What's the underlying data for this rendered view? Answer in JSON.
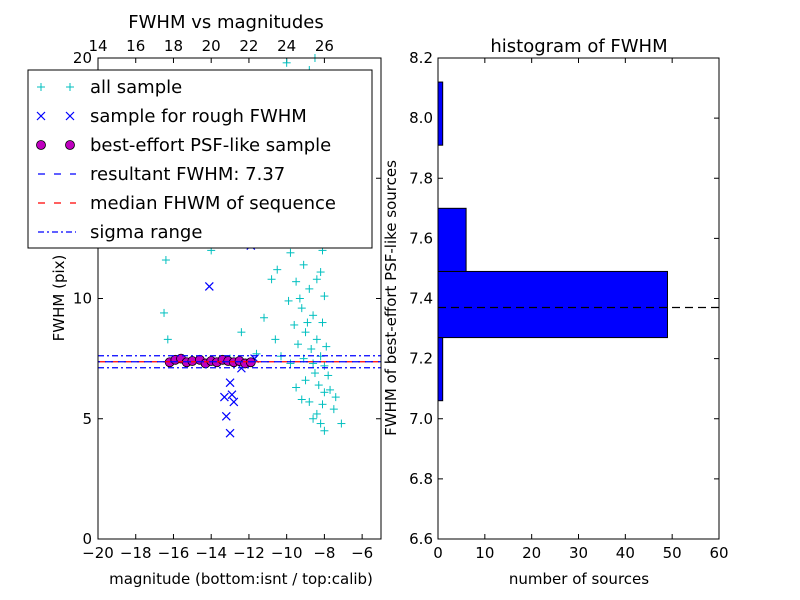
{
  "chart_data": [
    {
      "type": "scatter",
      "title": "FWHM vs magnitudes",
      "xlabel": "magnitude (bottom:isnt / top:calib)",
      "ylabel": "FWHM (pix)",
      "xlim": [
        -20,
        -5
      ],
      "ylim": [
        0,
        20
      ],
      "x_ticks": [
        "−20",
        "−18",
        "−16",
        "−14",
        "−12",
        "−10",
        "−8",
        "−6"
      ],
      "y_ticks": [
        "0",
        "5",
        "10",
        "15",
        "20"
      ],
      "top_x_ticks": [
        "14",
        "16",
        "18",
        "20",
        "22",
        "24",
        "26"
      ],
      "legend_position": "upper-left",
      "legend": [
        {
          "label": "all sample",
          "marker": "+",
          "color": "#00bfbf"
        },
        {
          "label": "sample for rough FWHM",
          "marker": "x",
          "color": "#0000ff"
        },
        {
          "label": "best-effort PSF-like sample",
          "marker": "o",
          "color": "#bf00bf"
        },
        {
          "label": "resultant FWHM: 7.37",
          "linestyle": "dashed",
          "color": "#0000ff"
        },
        {
          "label": "median FHWM of sequence",
          "linestyle": "dashed",
          "color": "#ff0000"
        },
        {
          "label": "sigma range",
          "linestyle": "dashdot",
          "color": "#0000ff"
        }
      ],
      "lines": {
        "resultant_fwhm": 7.37,
        "median_fwhm": 7.37,
        "sigma_range": [
          7.12,
          7.62
        ]
      },
      "series": [
        {
          "marker": "+",
          "color": "#00bfbf",
          "points": [
            [
              -16.4,
              11.6
            ],
            [
              -16.5,
              9.4
            ],
            [
              -16.3,
              8.3
            ],
            [
              -14.0,
              12.0
            ],
            [
              -13.0,
              7.5
            ],
            [
              -12.4,
              8.6
            ],
            [
              -11.6,
              7.7
            ],
            [
              -11.2,
              9.2
            ],
            [
              -10.8,
              10.8
            ],
            [
              -10.6,
              8.3
            ],
            [
              -10.3,
              7.6
            ],
            [
              -10.0,
              19.8
            ],
            [
              -9.8,
              7.3
            ],
            [
              -9.5,
              6.3
            ],
            [
              -9.2,
              5.8
            ],
            [
              -9.0,
              6.6
            ],
            [
              -8.8,
              5.7
            ],
            [
              -8.6,
              5.0
            ],
            [
              -8.4,
              5.2
            ],
            [
              -8.2,
              4.8
            ],
            [
              -8.0,
              4.5
            ],
            [
              -7.5,
              5.4
            ],
            [
              -7.4,
              5.9
            ],
            [
              -7.1,
              4.8
            ],
            [
              -8.8,
              19.5
            ],
            [
              -8.5,
              20.0
            ],
            [
              -9.6,
              19.0
            ],
            [
              -10.2,
              18.0
            ],
            [
              -9.3,
              17.5
            ],
            [
              -8.9,
              16.8
            ],
            [
              -10.4,
              16.3
            ],
            [
              -9.7,
              15.6
            ],
            [
              -8.3,
              15.2
            ],
            [
              -9.0,
              14.5
            ],
            [
              -10.0,
              14.0
            ],
            [
              -8.7,
              13.8
            ],
            [
              -9.4,
              13.2
            ],
            [
              -10.2,
              12.6
            ],
            [
              -8.5,
              12.4
            ],
            [
              -9.8,
              11.9
            ],
            [
              -9.1,
              11.4
            ],
            [
              -8.2,
              11.1
            ],
            [
              -10.5,
              11.2
            ],
            [
              -9.5,
              10.7
            ],
            [
              -8.8,
              10.4
            ],
            [
              -8.0,
              10.1
            ],
            [
              -9.9,
              9.9
            ],
            [
              -9.2,
              9.6
            ],
            [
              -8.6,
              9.3
            ],
            [
              -8.1,
              9.0
            ],
            [
              -9.6,
              8.9
            ],
            [
              -9.0,
              8.6
            ],
            [
              -8.4,
              8.3
            ],
            [
              -7.9,
              8.0
            ],
            [
              -8.7,
              7.9
            ],
            [
              -8.2,
              7.6
            ],
            [
              -8.0,
              7.2
            ],
            [
              -8.5,
              6.9
            ],
            [
              -7.8,
              6.8
            ],
            [
              -8.3,
              6.4
            ],
            [
              -8.0,
              6.1
            ],
            [
              -7.7,
              6.2
            ],
            [
              -8.1,
              5.6
            ],
            [
              -8.6,
              7.3
            ],
            [
              -9.1,
              7.5
            ],
            [
              -9.4,
              8.1
            ],
            [
              -8.9,
              9.0
            ],
            [
              -9.3,
              10.0
            ],
            [
              -8.4,
              10.8
            ],
            [
              -8.1,
              12.0
            ],
            [
              -8.9,
              12.8
            ],
            [
              -9.6,
              13.6
            ],
            [
              -8.6,
              14.6
            ],
            [
              -9.2,
              15.9
            ],
            [
              -8.4,
              16.4
            ],
            [
              -9.0,
              17.2
            ],
            [
              -8.2,
              18.1
            ],
            [
              -9.5,
              18.6
            ]
          ]
        },
        {
          "marker": "x",
          "color": "#0000ff",
          "points": [
            [
              -14.1,
              10.5
            ],
            [
              -11.9,
              12.2
            ],
            [
              -13.0,
              6.5
            ],
            [
              -12.9,
              6.0
            ],
            [
              -13.3,
              5.9
            ],
            [
              -12.8,
              5.7
            ],
            [
              -13.2,
              5.1
            ],
            [
              -13.0,
              4.4
            ],
            [
              -12.4,
              7.1
            ],
            [
              -11.7,
              7.5
            ]
          ]
        },
        {
          "marker": "o",
          "color": "#bf00bf",
          "points": [
            [
              -16.2,
              7.35
            ],
            [
              -15.9,
              7.45
            ],
            [
              -15.6,
              7.5
            ],
            [
              -15.3,
              7.35
            ],
            [
              -15.0,
              7.4
            ],
            [
              -14.6,
              7.45
            ],
            [
              -14.3,
              7.3
            ],
            [
              -14.0,
              7.4
            ],
            [
              -13.7,
              7.35
            ],
            [
              -13.4,
              7.45
            ],
            [
              -13.1,
              7.4
            ],
            [
              -12.8,
              7.35
            ],
            [
              -12.5,
              7.4
            ],
            [
              -12.2,
              7.3
            ],
            [
              -11.9,
              7.35
            ]
          ]
        }
      ]
    },
    {
      "type": "bar",
      "orientation": "horizontal",
      "title": "histogram of FWHM",
      "xlabel": "number of sources",
      "ylabel": "FWHM of best-effort PSF-like sources",
      "xlim": [
        0,
        60
      ],
      "ylim": [
        6.6,
        8.2
      ],
      "x_ticks": [
        "0",
        "10",
        "20",
        "30",
        "40",
        "50",
        "60"
      ],
      "y_ticks": [
        "6.6",
        "6.8",
        "7.0",
        "7.2",
        "7.4",
        "7.6",
        "7.8",
        "8.0",
        "8.2"
      ],
      "bar_color": "#0000ff",
      "bins": [
        {
          "from": 7.06,
          "to": 7.27,
          "count": 1
        },
        {
          "from": 7.27,
          "to": 7.49,
          "count": 49
        },
        {
          "from": 7.49,
          "to": 7.7,
          "count": 6
        },
        {
          "from": 7.91,
          "to": 8.12,
          "count": 1
        }
      ],
      "reference_line": 7.37
    }
  ]
}
